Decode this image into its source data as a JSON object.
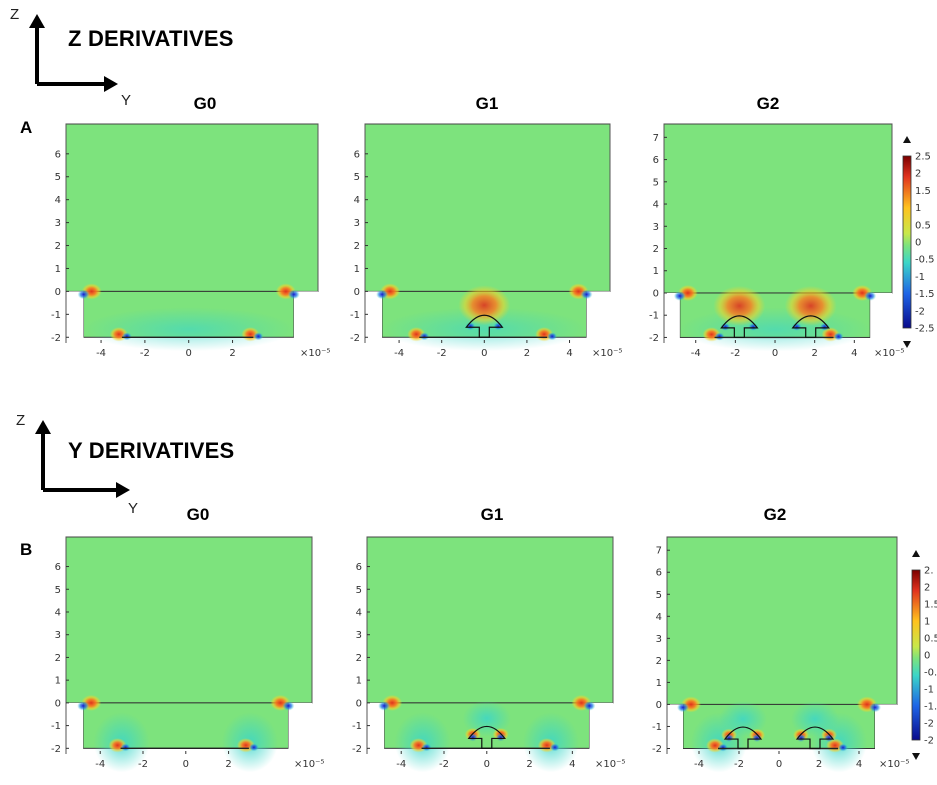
{
  "section_a": {
    "letter": "A",
    "heading": "Z DERIVATIVES",
    "axis_vertical": "Z",
    "axis_horizontal": "Y",
    "panels": [
      {
        "title": "G0",
        "gates": 0
      },
      {
        "title": "G1",
        "gates": 1
      },
      {
        "title": "G2",
        "gates": 2
      }
    ],
    "colorbar_ticks": [
      "2.5",
      "2",
      "1.5",
      "1",
      "0.5",
      "0",
      "-0.5",
      "-1",
      "-1.5",
      "-2",
      "-2.5"
    ]
  },
  "section_b": {
    "letter": "B",
    "heading": "Y DERIVATIVES",
    "axis_vertical": "Z",
    "axis_horizontal": "Y",
    "panels": [
      {
        "title": "G0",
        "gates": 0
      },
      {
        "title": "G1",
        "gates": 1
      },
      {
        "title": "G2",
        "gates": 2
      }
    ],
    "colorbar_ticks": [
      "2.",
      "2",
      "1.5",
      "1",
      "0.5",
      "0",
      "-0.",
      "-1",
      "-1.",
      "-2",
      "-2"
    ]
  },
  "y_ticks_g0_g1": [
    "6",
    "5",
    "4",
    "3",
    "2",
    "1",
    "0",
    "-1",
    "-2"
  ],
  "y_ticks_g2": [
    "7",
    "6",
    "5",
    "4",
    "3",
    "2",
    "1",
    "0",
    "-1",
    "-2"
  ],
  "x_ticks_g0": [
    "-4",
    "-2",
    "0",
    "2"
  ],
  "x_ticks_g1": [
    "-4",
    "-2",
    "0",
    "2",
    "4"
  ],
  "x_ticks_g2": [
    "-4",
    "-2",
    "0",
    "2",
    "4"
  ],
  "x_scale_label": "×10⁻⁵",
  "colors": {
    "field_green": "#7de37d",
    "field_cyan": "#3cd6c8",
    "hot_red": "#e0321e",
    "hot_yellow": "#ffd21e",
    "cold_blue": "#1818d2"
  }
}
